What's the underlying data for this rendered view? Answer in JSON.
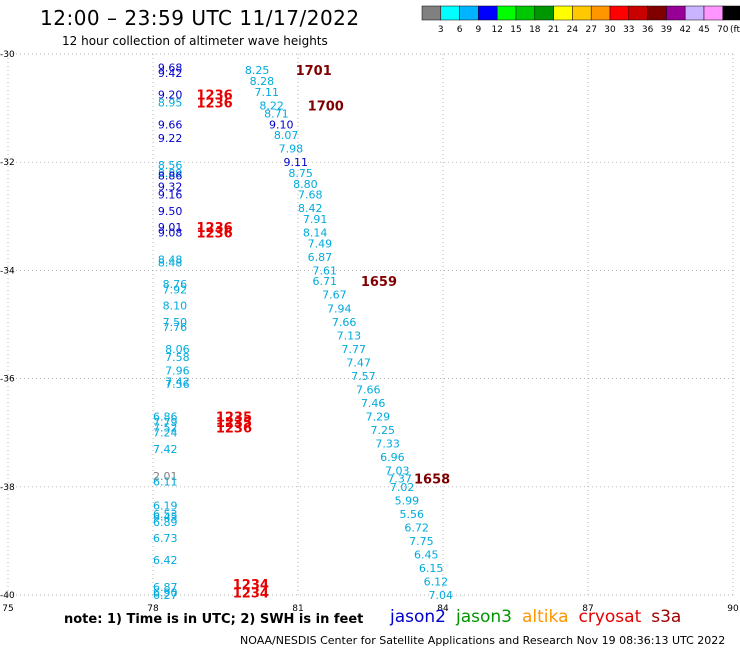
{
  "title": "12:00 – 23:59 UTC 11/17/2022",
  "subtitle": "12 hour collection of altimeter wave heights",
  "note": "note:  1) Time is in UTC;  2) SWH is in feet",
  "credit": "NOAA/NESDIS Center for Satellite Applications and Research    Nov 19 08:36:13 UTC 2022",
  "colorbar": {
    "unit": "(ft)",
    "labels": [
      "3",
      "6",
      "9",
      "12",
      "15",
      "18",
      "21",
      "24",
      "27",
      "30",
      "33",
      "36",
      "39",
      "42",
      "45",
      "70"
    ],
    "colors": [
      "#808080",
      "#00ffff",
      "#00b4ff",
      "#0000ff",
      "#00ff00",
      "#00c800",
      "#009600",
      "#ffff00",
      "#ffc800",
      "#ff9600",
      "#ff0000",
      "#c80000",
      "#800000",
      "#960096",
      "#c8b4ff",
      "#ff96ff",
      "#000000"
    ]
  },
  "satellites": [
    {
      "name": "jason2",
      "color": "#0000cc"
    },
    {
      "name": "jason3",
      "color": "#009600"
    },
    {
      "name": "altika",
      "color": "#ff9600"
    },
    {
      "name": "cryosat",
      "color": "#e60000"
    },
    {
      "name": "s3a",
      "color": "#a00000"
    }
  ],
  "chart_data": {
    "type": "scatter",
    "xlim": [
      75,
      90
    ],
    "ylim": [
      -40,
      -30
    ],
    "xticks": [
      "75",
      "78",
      "81",
      "84",
      "87",
      "90"
    ],
    "yticks": [
      "-30",
      "-32",
      "-34",
      "-36",
      "-38",
      "-40"
    ],
    "grid": true,
    "swh_points": [
      {
        "lon": 78.1,
        "lat": -30.25,
        "label": "9.68",
        "color": "#0000cc"
      },
      {
        "lon": 78.1,
        "lat": -30.35,
        "label": "9.42",
        "color": "#0000cc"
      },
      {
        "lon": 78.1,
        "lat": -30.75,
        "label": "9.20",
        "color": "#0000cc"
      },
      {
        "lon": 78.1,
        "lat": -30.9,
        "label": "8.95",
        "color": "#00aadd"
      },
      {
        "lon": 78.1,
        "lat": -31.3,
        "label": "9.66",
        "color": "#0000cc"
      },
      {
        "lon": 78.1,
        "lat": -31.55,
        "label": "9.22",
        "color": "#0000cc"
      },
      {
        "lon": 78.1,
        "lat": -32.05,
        "label": "8.56",
        "color": "#00aadd"
      },
      {
        "lon": 78.1,
        "lat": -32.2,
        "label": "8.89",
        "color": "#00aadd"
      },
      {
        "lon": 78.1,
        "lat": -32.25,
        "label": "8.86",
        "color": "#0000cc"
      },
      {
        "lon": 78.1,
        "lat": -32.45,
        "label": "9.32",
        "color": "#0000cc"
      },
      {
        "lon": 78.1,
        "lat": -32.6,
        "label": "9.16",
        "color": "#0000cc"
      },
      {
        "lon": 78.1,
        "lat": -32.9,
        "label": "9.50",
        "color": "#0000cc"
      },
      {
        "lon": 78.1,
        "lat": -33.2,
        "label": "9.01",
        "color": "#0000cc"
      },
      {
        "lon": 78.1,
        "lat": -33.3,
        "label": "9.08",
        "color": "#0000cc"
      },
      {
        "lon": 78.1,
        "lat": -33.8,
        "label": "8.48",
        "color": "#00aadd"
      },
      {
        "lon": 78.1,
        "lat": -33.85,
        "label": "8.48",
        "color": "#00aadd"
      },
      {
        "lon": 78.2,
        "lat": -34.25,
        "label": "8.76",
        "color": "#00aadd"
      },
      {
        "lon": 78.2,
        "lat": -34.35,
        "label": "7.92",
        "color": "#00aadd"
      },
      {
        "lon": 78.2,
        "lat": -34.65,
        "label": "8.10",
        "color": "#00aadd"
      },
      {
        "lon": 78.2,
        "lat": -34.95,
        "label": "7.50",
        "color": "#00aadd"
      },
      {
        "lon": 78.2,
        "lat": -35.05,
        "label": "7.76",
        "color": "#00aadd"
      },
      {
        "lon": 78.25,
        "lat": -35.45,
        "label": "8.06",
        "color": "#00aadd"
      },
      {
        "lon": 78.25,
        "lat": -35.6,
        "label": "7.58",
        "color": "#00aadd"
      },
      {
        "lon": 78.25,
        "lat": -35.85,
        "label": "7.96",
        "color": "#00aadd"
      },
      {
        "lon": 78.25,
        "lat": -36.05,
        "label": "7.42",
        "color": "#00aadd"
      },
      {
        "lon": 78.25,
        "lat": -36.1,
        "label": "7.56",
        "color": "#00aadd"
      },
      {
        "lon": 78.0,
        "lat": -36.7,
        "label": "6.86",
        "color": "#00aadd"
      },
      {
        "lon": 78.0,
        "lat": -36.8,
        "label": "7.79",
        "color": "#00aadd"
      },
      {
        "lon": 78.0,
        "lat": -36.9,
        "label": "7.52",
        "color": "#00aadd"
      },
      {
        "lon": 78.0,
        "lat": -37.0,
        "label": "7.24",
        "color": "#00aadd"
      },
      {
        "lon": 78.0,
        "lat": -37.3,
        "label": "7.42",
        "color": "#00aadd"
      },
      {
        "lon": 78.0,
        "lat": -37.8,
        "label": "2.01",
        "color": "#808080"
      },
      {
        "lon": 78.0,
        "lat": -37.9,
        "label": "6.11",
        "color": "#00aadd"
      },
      {
        "lon": 78.0,
        "lat": -38.35,
        "label": "6.19",
        "color": "#00aadd"
      },
      {
        "lon": 78.0,
        "lat": -38.5,
        "label": "6.53",
        "color": "#00aadd"
      },
      {
        "lon": 78.0,
        "lat": -38.55,
        "label": "6.45",
        "color": "#00aadd"
      },
      {
        "lon": 78.0,
        "lat": -38.65,
        "label": "6.89",
        "color": "#00aadd"
      },
      {
        "lon": 78.0,
        "lat": -38.95,
        "label": "6.73",
        "color": "#00aadd"
      },
      {
        "lon": 78.0,
        "lat": -39.35,
        "label": "6.42",
        "color": "#00aadd"
      },
      {
        "lon": 78.0,
        "lat": -39.85,
        "label": "6.87",
        "color": "#00aadd"
      },
      {
        "lon": 78.0,
        "lat": -39.95,
        "label": "6.90",
        "color": "#00aadd"
      },
      {
        "lon": 78.0,
        "lat": -40.0,
        "label": "6.27",
        "color": "#00aadd"
      },
      {
        "lon": 79.9,
        "lat": -30.3,
        "label": "8.25",
        "color": "#00aadd"
      },
      {
        "lon": 80.0,
        "lat": -30.5,
        "label": "8.28",
        "color": "#00aadd"
      },
      {
        "lon": 80.1,
        "lat": -30.7,
        "label": "7.11",
        "color": "#00aadd"
      },
      {
        "lon": 80.2,
        "lat": -30.95,
        "label": "8.22",
        "color": "#00aadd"
      },
      {
        "lon": 80.3,
        "lat": -31.1,
        "label": "8.71",
        "color": "#00aadd"
      },
      {
        "lon": 80.4,
        "lat": -31.3,
        "label": "9.10",
        "color": "#0000cc"
      },
      {
        "lon": 80.5,
        "lat": -31.5,
        "label": "8.07",
        "color": "#00aadd"
      },
      {
        "lon": 80.6,
        "lat": -31.75,
        "label": "7.98",
        "color": "#00aadd"
      },
      {
        "lon": 80.7,
        "lat": -32.0,
        "label": "9.11",
        "color": "#0000cc"
      },
      {
        "lon": 80.8,
        "lat": -32.2,
        "label": "8.75",
        "color": "#00aadd"
      },
      {
        "lon": 80.9,
        "lat": -32.4,
        "label": "8.80",
        "color": "#00aadd"
      },
      {
        "lon": 81.0,
        "lat": -32.6,
        "label": "7.68",
        "color": "#00aadd"
      },
      {
        "lon": 81.0,
        "lat": -32.85,
        "label": "8.42",
        "color": "#00aadd"
      },
      {
        "lon": 81.1,
        "lat": -33.05,
        "label": "7.91",
        "color": "#00aadd"
      },
      {
        "lon": 81.1,
        "lat": -33.3,
        "label": "8.14",
        "color": "#00aadd"
      },
      {
        "lon": 81.2,
        "lat": -33.5,
        "label": "7.49",
        "color": "#00aadd"
      },
      {
        "lon": 81.2,
        "lat": -33.75,
        "label": "6.87",
        "color": "#00aadd"
      },
      {
        "lon": 81.3,
        "lat": -34.0,
        "label": "7.61",
        "color": "#00aadd"
      },
      {
        "lon": 81.3,
        "lat": -34.2,
        "label": "6.71",
        "color": "#00aadd"
      },
      {
        "lon": 81.5,
        "lat": -34.45,
        "label": "7.67",
        "color": "#00aadd"
      },
      {
        "lon": 81.6,
        "lat": -34.7,
        "label": "7.94",
        "color": "#00aadd"
      },
      {
        "lon": 81.7,
        "lat": -34.95,
        "label": "7.66",
        "color": "#00aadd"
      },
      {
        "lon": 81.8,
        "lat": -35.2,
        "label": "7.13",
        "color": "#00aadd"
      },
      {
        "lon": 81.9,
        "lat": -35.45,
        "label": "7.77",
        "color": "#00aadd"
      },
      {
        "lon": 82.0,
        "lat": -35.7,
        "label": "7.47",
        "color": "#00aadd"
      },
      {
        "lon": 82.1,
        "lat": -35.95,
        "label": "7.57",
        "color": "#00aadd"
      },
      {
        "lon": 82.2,
        "lat": -36.2,
        "label": "7.66",
        "color": "#00aadd"
      },
      {
        "lon": 82.3,
        "lat": -36.45,
        "label": "7.46",
        "color": "#00aadd"
      },
      {
        "lon": 82.4,
        "lat": -36.7,
        "label": "7.29",
        "color": "#00aadd"
      },
      {
        "lon": 82.5,
        "lat": -36.95,
        "label": "7.25",
        "color": "#00aadd"
      },
      {
        "lon": 82.6,
        "lat": -37.2,
        "label": "7.33",
        "color": "#00aadd"
      },
      {
        "lon": 82.7,
        "lat": -37.45,
        "label": "6.96",
        "color": "#00aadd"
      },
      {
        "lon": 82.8,
        "lat": -37.7,
        "label": "7.03",
        "color": "#00aadd"
      },
      {
        "lon": 82.85,
        "lat": -37.85,
        "label": "7.37",
        "color": "#00aadd"
      },
      {
        "lon": 82.9,
        "lat": -38.0,
        "label": "7.02",
        "color": "#00aadd"
      },
      {
        "lon": 83.0,
        "lat": -38.25,
        "label": "5.99",
        "color": "#00aadd"
      },
      {
        "lon": 83.1,
        "lat": -38.5,
        "label": "5.56",
        "color": "#00aadd"
      },
      {
        "lon": 83.2,
        "lat": -38.75,
        "label": "6.72",
        "color": "#00aadd"
      },
      {
        "lon": 83.3,
        "lat": -39.0,
        "label": "7.75",
        "color": "#00aadd"
      },
      {
        "lon": 83.4,
        "lat": -39.25,
        "label": "6.45",
        "color": "#00aadd"
      },
      {
        "lon": 83.5,
        "lat": -39.5,
        "label": "6.15",
        "color": "#00aadd"
      },
      {
        "lon": 83.6,
        "lat": -39.75,
        "label": "6.12",
        "color": "#00aadd"
      },
      {
        "lon": 83.7,
        "lat": -40.0,
        "label": "7.04",
        "color": "#00aadd"
      }
    ],
    "time_labels": [
      {
        "lon": 78.9,
        "lat": -30.75,
        "label": "1236",
        "color": "#e60000"
      },
      {
        "lon": 78.9,
        "lat": -30.9,
        "label": "1236",
        "color": "#e60000"
      },
      {
        "lon": 78.9,
        "lat": -33.2,
        "label": "1236",
        "color": "#e60000"
      },
      {
        "lon": 78.9,
        "lat": -33.3,
        "label": "1236",
        "color": "#e60000"
      },
      {
        "lon": 79.3,
        "lat": -36.7,
        "label": "1235",
        "color": "#e60000"
      },
      {
        "lon": 79.3,
        "lat": -36.8,
        "label": "1235",
        "color": "#e60000"
      },
      {
        "lon": 79.3,
        "lat": -36.9,
        "label": "1236",
        "color": "#e60000"
      },
      {
        "lon": 79.65,
        "lat": -39.8,
        "label": "1234",
        "color": "#e60000"
      },
      {
        "lon": 79.65,
        "lat": -39.95,
        "label": "1234",
        "color": "#e60000"
      },
      {
        "lon": 80.95,
        "lat": -30.3,
        "label": "1701",
        "color": "#800000"
      },
      {
        "lon": 81.2,
        "lat": -30.95,
        "label": "1700",
        "color": "#800000"
      },
      {
        "lon": 82.3,
        "lat": -34.2,
        "label": "1659",
        "color": "#800000"
      },
      {
        "lon": 83.4,
        "lat": -37.85,
        "label": "1658",
        "color": "#800000"
      }
    ]
  }
}
